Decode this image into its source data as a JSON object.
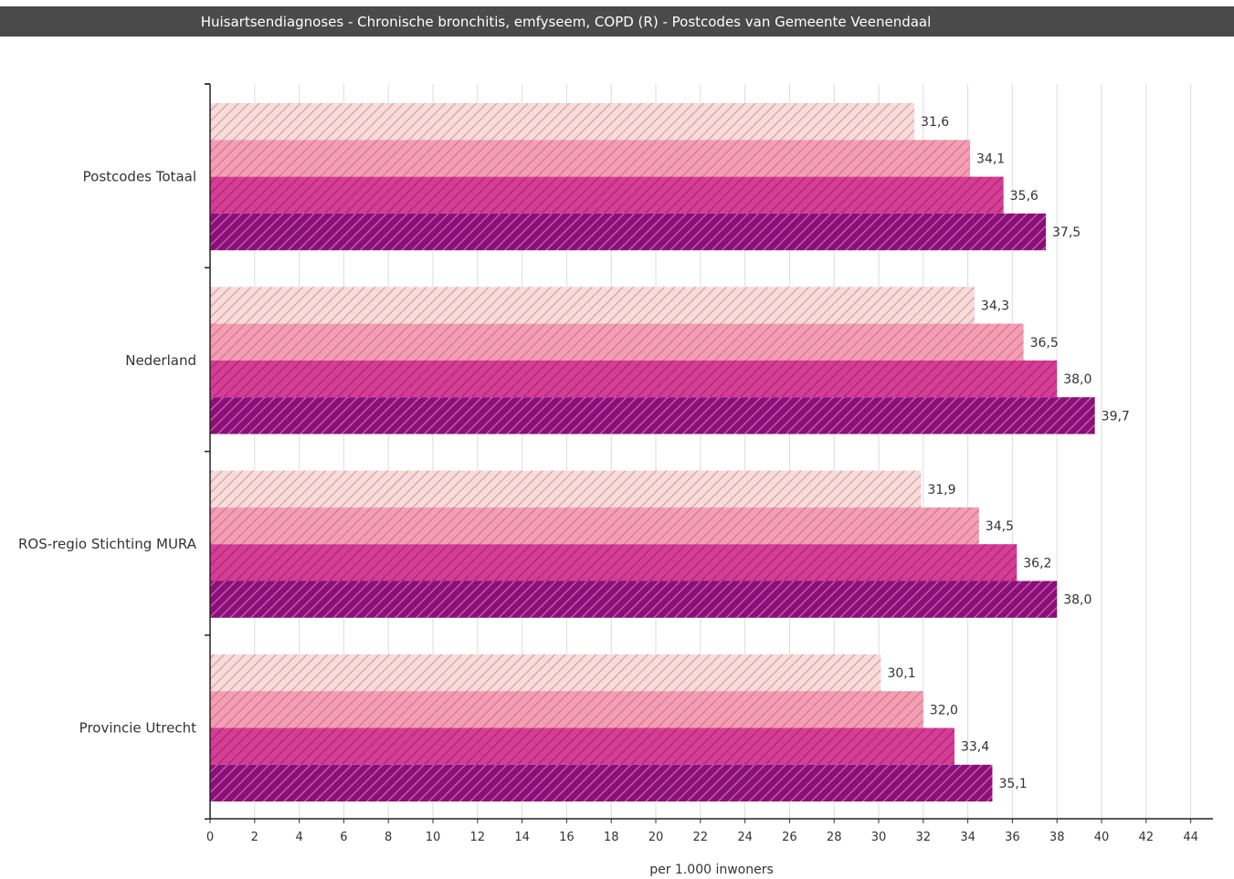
{
  "page": {
    "title": "Huisartsendiagnoses - Chronische bronchitis, emfyseem, COPD (R) - Postcodes van Gemeente Veenendaal"
  },
  "chart_data": {
    "type": "bar",
    "orientation": "horizontal",
    "title": "Huisartsendiagnoses - Chronische bronchitis, emfyseem, COPD (R) - Postcodes van Gemeente Veenendaal",
    "xlabel": "per 1.000 inwoners",
    "ylabel": "",
    "xlim": [
      0,
      44
    ],
    "xticks": [
      0,
      2,
      4,
      6,
      8,
      10,
      12,
      14,
      16,
      18,
      20,
      22,
      24,
      26,
      28,
      30,
      32,
      34,
      36,
      38,
      40,
      42,
      44
    ],
    "grid": "vertical",
    "legend": "none",
    "decimal_separator": ",",
    "categories": [
      "Postcodes Totaal",
      "Nederland",
      "ROS-regio Stichting MURA",
      "Provincie Utrecht"
    ],
    "series": [
      {
        "values": [
          31.6,
          34.3,
          31.9,
          30.1
        ],
        "color": "#f7dcdc",
        "hatch": "#e0a8a8"
      },
      {
        "values": [
          34.1,
          36.5,
          34.5,
          32.0
        ],
        "color": "#f29fb5",
        "hatch": "#e07a93"
      },
      {
        "values": [
          35.6,
          38.0,
          36.2,
          33.4
        ],
        "color": "#d63d95",
        "hatch": "#b02a78"
      },
      {
        "values": [
          37.5,
          39.7,
          38.0,
          35.1
        ],
        "color": "#8a0f78",
        "hatch": "#c05aa8"
      }
    ]
  }
}
